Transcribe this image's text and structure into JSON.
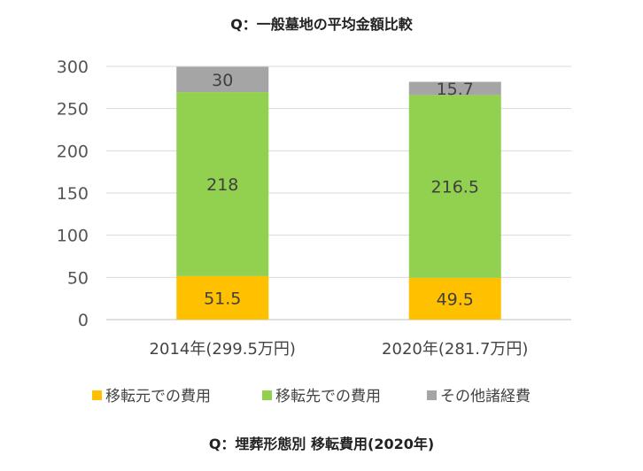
{
  "chart_data": {
    "type": "bar",
    "stacked": true,
    "title": "Q：一般墓地の平均金額比較",
    "footer": "Q：埋葬形態別 移転費用(2020年)",
    "categories": [
      "2014年(299.5万円)",
      "2020年(281.7万円)"
    ],
    "series": [
      {
        "name": "移転元での費用",
        "color": "#FFC000",
        "values": [
          51.5,
          49.5
        ],
        "labels": [
          "51.5",
          "49.5"
        ]
      },
      {
        "name": "移転先での費用",
        "color": "#92D050",
        "values": [
          218,
          216.5
        ],
        "labels": [
          "218",
          "216.5"
        ]
      },
      {
        "name": "その他諸経費",
        "color": "#A5A5A5",
        "values": [
          30,
          15.7
        ],
        "labels": [
          "30",
          "15.7"
        ]
      }
    ],
    "ylim": [
      0,
      300
    ],
    "yticks": [
      "0",
      "50",
      "100",
      "150",
      "200",
      "250",
      "300"
    ],
    "grid": true,
    "legend_position": "bottom"
  }
}
